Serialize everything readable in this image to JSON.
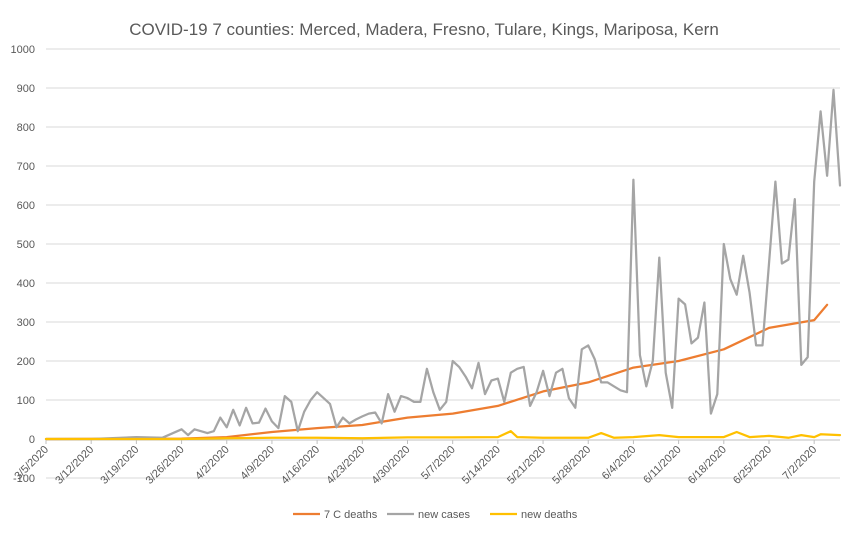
{
  "chart_data": {
    "type": "line",
    "title": "COVID-19 7 counties: Merced, Madera, Fresno, Tulare, Kings, Mariposa, Kern",
    "xlabel": "",
    "ylabel": "",
    "ylim": [
      -100,
      1000
    ],
    "y_ticks": [
      -100,
      0,
      100,
      200,
      300,
      400,
      500,
      600,
      700,
      800,
      900,
      1000
    ],
    "grid": "horizontal",
    "legend_position": "bottom",
    "x_start": "3/5/2020",
    "x_end": "7/4/2020",
    "x_tick_labels": [
      "3/5/2020",
      "3/12/2020",
      "3/19/2020",
      "3/26/2020",
      "4/2/2020",
      "4/9/2020",
      "4/16/2020",
      "4/23/2020",
      "4/30/2020",
      "5/7/2020",
      "5/14/2020",
      "5/21/2020",
      "5/28/2020",
      "6/4/2020",
      "6/11/2020",
      "6/18/2020",
      "6/25/2020",
      "7/2/2020"
    ],
    "series": [
      {
        "name": "7 C deaths",
        "color": "#ED7D31",
        "points": [
          [
            "3/5/2020",
            0
          ],
          [
            "3/26/2020",
            1
          ],
          [
            "4/2/2020",
            5
          ],
          [
            "4/9/2020",
            18
          ],
          [
            "4/16/2020",
            28
          ],
          [
            "4/23/2020",
            36
          ],
          [
            "4/30/2020",
            55
          ],
          [
            "5/7/2020",
            65
          ],
          [
            "5/14/2020",
            85
          ],
          [
            "5/21/2020",
            122
          ],
          [
            "5/28/2020",
            145
          ],
          [
            "6/4/2020",
            183
          ],
          [
            "6/11/2020",
            200
          ],
          [
            "6/18/2020",
            230
          ],
          [
            "6/25/2020",
            285
          ],
          [
            "7/2/2020",
            305
          ],
          [
            "7/4/2020",
            344
          ]
        ]
      },
      {
        "name": "new cases",
        "color": "#A5A5A5",
        "points": [
          [
            "3/5/2020",
            0
          ],
          [
            "3/12/2020",
            0
          ],
          [
            "3/19/2020",
            5
          ],
          [
            "3/23/2020",
            3
          ],
          [
            "3/26/2020",
            25
          ],
          [
            "3/27/2020",
            10
          ],
          [
            "3/28/2020",
            25
          ],
          [
            "3/30/2020",
            15
          ],
          [
            "3/31/2020",
            20
          ],
          [
            "4/1/2020",
            55
          ],
          [
            "4/2/2020",
            30
          ],
          [
            "4/3/2020",
            75
          ],
          [
            "4/4/2020",
            35
          ],
          [
            "4/5/2020",
            80
          ],
          [
            "4/6/2020",
            40
          ],
          [
            "4/7/2020",
            42
          ],
          [
            "4/8/2020",
            78
          ],
          [
            "4/9/2020",
            45
          ],
          [
            "4/10/2020",
            28
          ],
          [
            "4/11/2020",
            110
          ],
          [
            "4/12/2020",
            95
          ],
          [
            "4/13/2020",
            20
          ],
          [
            "4/14/2020",
            70
          ],
          [
            "4/15/2020",
            100
          ],
          [
            "4/16/2020",
            120
          ],
          [
            "4/17/2020",
            105
          ],
          [
            "4/18/2020",
            90
          ],
          [
            "4/19/2020",
            30
          ],
          [
            "4/20/2020",
            55
          ],
          [
            "4/21/2020",
            40
          ],
          [
            "4/22/2020",
            50
          ],
          [
            "4/23/2020",
            58
          ],
          [
            "4/24/2020",
            65
          ],
          [
            "4/25/2020",
            68
          ],
          [
            "4/26/2020",
            40
          ],
          [
            "4/27/2020",
            115
          ],
          [
            "4/28/2020",
            70
          ],
          [
            "4/29/2020",
            110
          ],
          [
            "4/30/2020",
            105
          ],
          [
            "5/1/2020",
            95
          ],
          [
            "5/2/2020",
            95
          ],
          [
            "5/3/2020",
            180
          ],
          [
            "5/4/2020",
            120
          ],
          [
            "5/5/2020",
            75
          ],
          [
            "5/6/2020",
            95
          ],
          [
            "5/7/2020",
            200
          ],
          [
            "5/8/2020",
            185
          ],
          [
            "5/9/2020",
            160
          ],
          [
            "5/10/2020",
            130
          ],
          [
            "5/11/2020",
            195
          ],
          [
            "5/12/2020",
            115
          ],
          [
            "5/13/2020",
            150
          ],
          [
            "5/14/2020",
            155
          ],
          [
            "5/15/2020",
            95
          ],
          [
            "5/16/2020",
            170
          ],
          [
            "5/17/2020",
            180
          ],
          [
            "5/18/2020",
            185
          ],
          [
            "5/19/2020",
            85
          ],
          [
            "5/20/2020",
            120
          ],
          [
            "5/21/2020",
            175
          ],
          [
            "5/22/2020",
            110
          ],
          [
            "5/23/2020",
            170
          ],
          [
            "5/24/2020",
            180
          ],
          [
            "5/25/2020",
            105
          ],
          [
            "5/26/2020",
            80
          ],
          [
            "5/27/2020",
            230
          ],
          [
            "5/28/2020",
            240
          ],
          [
            "5/29/2020",
            205
          ],
          [
            "5/30/2020",
            145
          ],
          [
            "5/31/2020",
            145
          ],
          [
            "6/1/2020",
            135
          ],
          [
            "6/2/2020",
            125
          ],
          [
            "6/3/2020",
            120
          ],
          [
            "6/4/2020",
            665
          ],
          [
            "6/5/2020",
            215
          ],
          [
            "6/6/2020",
            135
          ],
          [
            "6/7/2020",
            200
          ],
          [
            "6/8/2020",
            465
          ],
          [
            "6/9/2020",
            170
          ],
          [
            "6/10/2020",
            80
          ],
          [
            "6/11/2020",
            360
          ],
          [
            "6/12/2020",
            345
          ],
          [
            "6/13/2020",
            245
          ],
          [
            "6/14/2020",
            260
          ],
          [
            "6/15/2020",
            350
          ],
          [
            "6/16/2020",
            65
          ],
          [
            "6/17/2020",
            115
          ],
          [
            "6/18/2020",
            500
          ],
          [
            "6/19/2020",
            410
          ],
          [
            "6/20/2020",
            370
          ],
          [
            "6/21/2020",
            470
          ],
          [
            "6/22/2020",
            375
          ],
          [
            "6/23/2020",
            240
          ],
          [
            "6/24/2020",
            240
          ],
          [
            "6/25/2020",
            450
          ],
          [
            "6/26/2020",
            660
          ],
          [
            "6/27/2020",
            450
          ],
          [
            "6/28/2020",
            460
          ],
          [
            "6/29/2020",
            615
          ],
          [
            "6/30/2020",
            190
          ],
          [
            "7/1/2020",
            210
          ],
          [
            "7/2/2020",
            660
          ],
          [
            "7/3/2020",
            840
          ],
          [
            "7/4/2020",
            675
          ],
          [
            "7/5/2020",
            895
          ],
          [
            "7/6/2020",
            650
          ]
        ]
      },
      {
        "name": "new deaths",
        "color": "#FFC000",
        "points": [
          [
            "3/5/2020",
            0
          ],
          [
            "3/26/2020",
            0
          ],
          [
            "4/2/2020",
            2
          ],
          [
            "4/9/2020",
            3
          ],
          [
            "4/16/2020",
            3
          ],
          [
            "4/23/2020",
            2
          ],
          [
            "4/30/2020",
            4
          ],
          [
            "5/7/2020",
            4
          ],
          [
            "5/14/2020",
            5
          ],
          [
            "5/16/2020",
            20
          ],
          [
            "5/17/2020",
            5
          ],
          [
            "5/21/2020",
            3
          ],
          [
            "5/28/2020",
            3
          ],
          [
            "5/30/2020",
            15
          ],
          [
            "6/1/2020",
            3
          ],
          [
            "6/4/2020",
            5
          ],
          [
            "6/8/2020",
            10
          ],
          [
            "6/11/2020",
            5
          ],
          [
            "6/18/2020",
            5
          ],
          [
            "6/20/2020",
            18
          ],
          [
            "6/22/2020",
            5
          ],
          [
            "6/25/2020",
            8
          ],
          [
            "6/28/2020",
            3
          ],
          [
            "6/30/2020",
            10
          ],
          [
            "7/2/2020",
            5
          ],
          [
            "7/3/2020",
            12
          ],
          [
            "7/6/2020",
            10
          ]
        ]
      }
    ]
  }
}
